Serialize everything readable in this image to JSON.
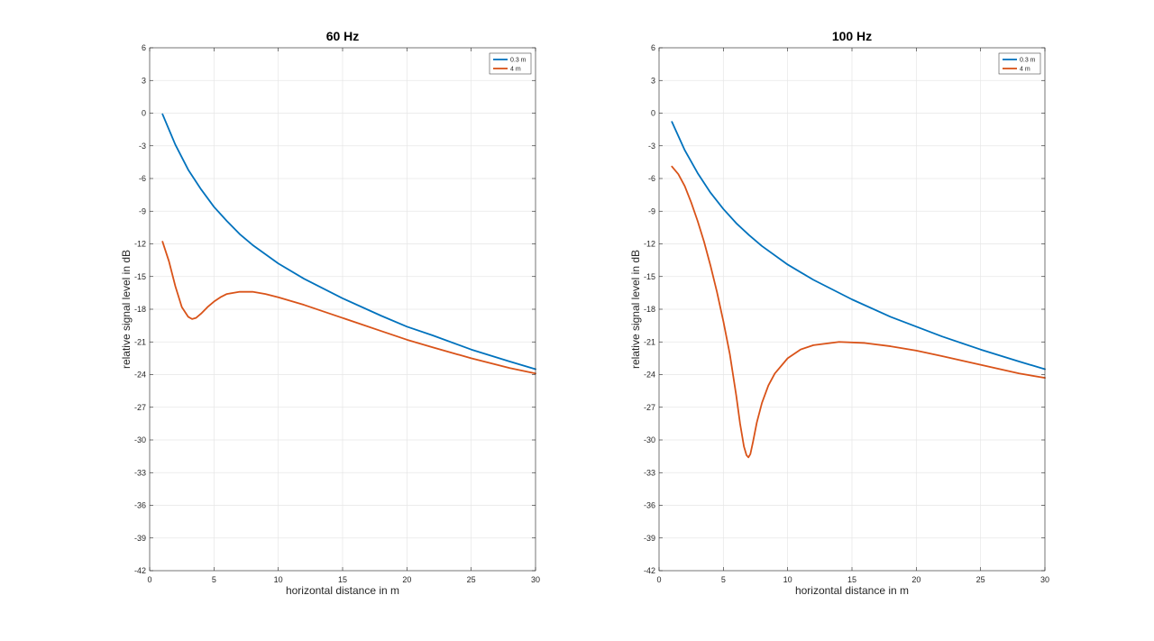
{
  "chart_data": [
    {
      "type": "line",
      "title": "60 Hz",
      "xlabel": "horizontal distance in m",
      "ylabel": "relative signal level in dB",
      "xlim": [
        0,
        30
      ],
      "ylim": [
        -42,
        6
      ],
      "xticks": [
        0,
        5,
        10,
        15,
        20,
        25,
        30
      ],
      "yticks": [
        6,
        3,
        0,
        -3,
        -6,
        -9,
        -12,
        -15,
        -18,
        -21,
        -24,
        -27,
        -30,
        -33,
        -36,
        -39,
        -42
      ],
      "grid": true,
      "legend_position": "top-right",
      "series": [
        {
          "name": "0.3 m",
          "color": "#0072BD",
          "x": [
            1,
            1.5,
            2,
            3,
            4,
            5,
            6,
            7,
            8,
            10,
            12,
            15,
            18,
            20,
            22,
            25,
            28,
            30
          ],
          "y": [
            -0.1,
            -1.5,
            -2.9,
            -5.2,
            -7.0,
            -8.6,
            -9.9,
            -11.1,
            -12.1,
            -13.8,
            -15.2,
            -17.0,
            -18.6,
            -19.6,
            -20.4,
            -21.7,
            -22.8,
            -23.5
          ]
        },
        {
          "name": "4 m",
          "color": "#D95319",
          "x": [
            1,
            1.5,
            2,
            2.5,
            3,
            3.3,
            3.6,
            4,
            4.5,
            5,
            5.5,
            6,
            6.5,
            7,
            7.5,
            8,
            9,
            10,
            12,
            15,
            18,
            20,
            22,
            25,
            28,
            30
          ],
          "y": [
            -11.8,
            -13.6,
            -15.9,
            -17.8,
            -18.7,
            -18.9,
            -18.8,
            -18.4,
            -17.8,
            -17.3,
            -16.9,
            -16.6,
            -16.5,
            -16.4,
            -16.4,
            -16.4,
            -16.6,
            -16.9,
            -17.6,
            -18.8,
            -20.0,
            -20.8,
            -21.5,
            -22.5,
            -23.4,
            -23.9
          ]
        }
      ]
    },
    {
      "type": "line",
      "title": "100 Hz",
      "xlabel": "horizontal distance in m",
      "ylabel": "relative signal level in dB",
      "xlim": [
        0,
        30
      ],
      "ylim": [
        -42,
        6
      ],
      "xticks": [
        0,
        5,
        10,
        15,
        20,
        25,
        30
      ],
      "yticks": [
        6,
        3,
        0,
        -3,
        -6,
        -9,
        -12,
        -15,
        -18,
        -21,
        -24,
        -27,
        -30,
        -33,
        -36,
        -39,
        -42
      ],
      "grid": true,
      "legend_position": "top-right",
      "series": [
        {
          "name": "0.3 m",
          "color": "#0072BD",
          "x": [
            1,
            1.5,
            2,
            3,
            4,
            5,
            6,
            7,
            8,
            10,
            12,
            15,
            18,
            20,
            22,
            25,
            28,
            30
          ],
          "y": [
            -0.8,
            -2.1,
            -3.4,
            -5.5,
            -7.3,
            -8.8,
            -10.1,
            -11.2,
            -12.2,
            -13.9,
            -15.3,
            -17.1,
            -18.7,
            -19.6,
            -20.5,
            -21.7,
            -22.8,
            -23.5
          ]
        },
        {
          "name": "4 m",
          "color": "#D95319",
          "x": [
            1,
            1.5,
            2,
            2.5,
            3,
            3.5,
            4,
            4.5,
            5,
            5.5,
            6,
            6.3,
            6.6,
            6.8,
            6.95,
            7.1,
            7.3,
            7.6,
            8,
            8.5,
            9,
            10,
            11,
            12,
            14,
            16,
            18,
            20,
            22,
            25,
            28,
            30
          ],
          "y": [
            -4.9,
            -5.6,
            -6.7,
            -8.2,
            -9.9,
            -11.8,
            -14.0,
            -16.4,
            -19.1,
            -22.1,
            -25.9,
            -28.5,
            -30.6,
            -31.4,
            -31.6,
            -31.3,
            -30.2,
            -28.4,
            -26.6,
            -25.0,
            -23.9,
            -22.5,
            -21.7,
            -21.3,
            -21.0,
            -21.1,
            -21.4,
            -21.8,
            -22.3,
            -23.1,
            -23.9,
            -24.3
          ]
        }
      ]
    }
  ]
}
